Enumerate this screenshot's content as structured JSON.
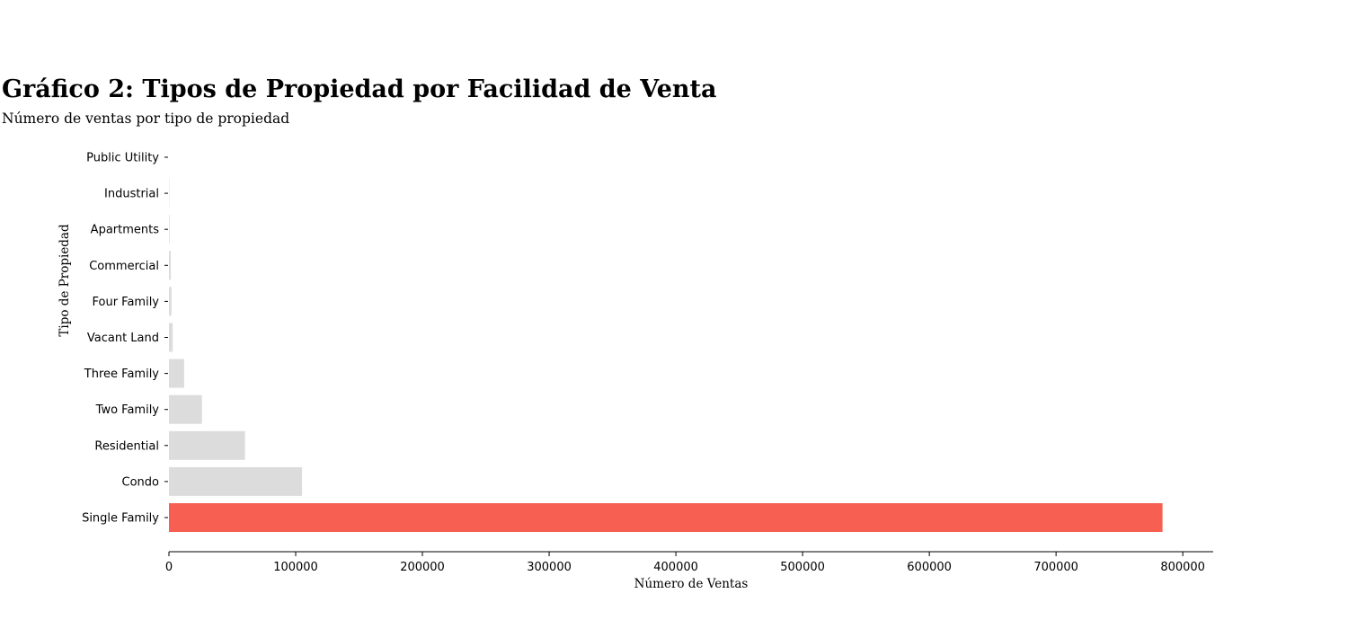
{
  "title": "Gráfico 2: Tipos de Propiedad por Facilidad de Venta",
  "subtitle": "Número de ventas por tipo de propiedad",
  "colors": {
    "highlight": "#f65f52",
    "default": "#dcdcdc"
  },
  "chart_data": {
    "type": "bar",
    "orientation": "horizontal",
    "title": "Gráfico 2: Tipos de Propiedad por Facilidad de Venta",
    "subtitle": "Número de ventas por tipo de propiedad",
    "xlabel": "Número de Ventas",
    "ylabel": "Tipo de Propiedad",
    "categories": [
      "Single Family",
      "Condo",
      "Residential",
      "Two Family",
      "Three Family",
      "Vacant Land",
      "Four Family",
      "Commercial",
      "Apartments",
      "Industrial",
      "Public Utility"
    ],
    "values": [
      784000,
      105000,
      60000,
      26000,
      12000,
      3000,
      2000,
      1500,
      500,
      300,
      10
    ],
    "highlight": "Single Family",
    "xlim": [
      0,
      824000
    ],
    "xticks": [
      0,
      100000,
      200000,
      300000,
      400000,
      500000,
      600000,
      700000,
      800000
    ],
    "grid": false
  }
}
